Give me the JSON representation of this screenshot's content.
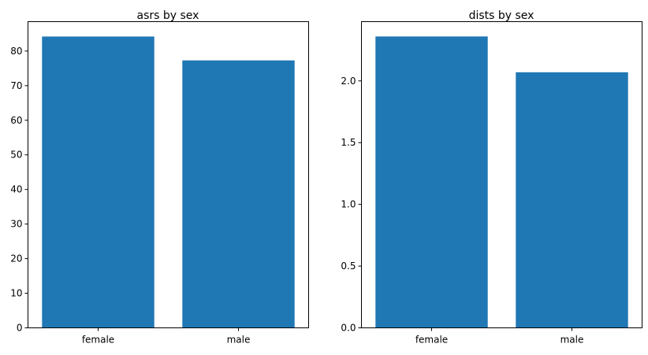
{
  "colors": {
    "bar": "#1f77b4"
  },
  "chart_data": [
    {
      "type": "bar",
      "title": "asrs by sex",
      "xlabel": "",
      "ylabel": "",
      "categories": [
        "female",
        "male"
      ],
      "values": [
        84.2,
        77.3
      ],
      "ylim": [
        0,
        88.5
      ],
      "yticks": [
        0,
        10,
        20,
        30,
        40,
        50,
        60,
        70,
        80
      ],
      "ytick_labels": [
        "0",
        "10",
        "20",
        "30",
        "40",
        "50",
        "60",
        "70",
        "80"
      ],
      "grid": false,
      "legend": "none"
    },
    {
      "type": "bar",
      "title": "dists by sex",
      "xlabel": "",
      "ylabel": "",
      "categories": [
        "female",
        "male"
      ],
      "values": [
        2.36,
        2.07
      ],
      "ylim": [
        0,
        2.48
      ],
      "yticks": [
        0.0,
        0.5,
        1.0,
        1.5,
        2.0
      ],
      "ytick_labels": [
        "0.0",
        "0.5",
        "1.0",
        "1.5",
        "2.0"
      ],
      "grid": false,
      "legend": "none"
    }
  ]
}
